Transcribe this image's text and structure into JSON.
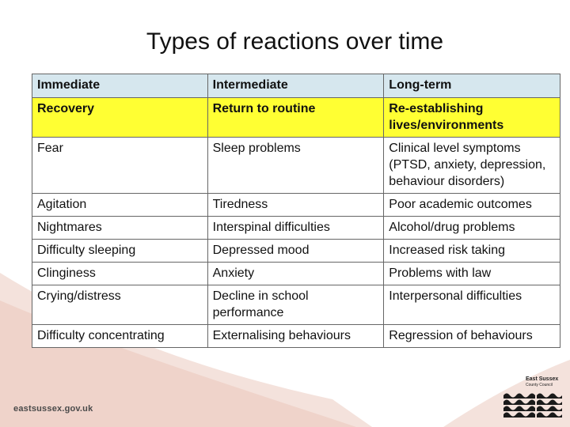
{
  "slide": {
    "title": "Types of reactions over time"
  },
  "table": {
    "rows": [
      [
        "Immediate",
        "Intermediate",
        "Long-term"
      ],
      [
        "Recovery",
        "Return to routine",
        "Re-establishing lives/environments"
      ],
      [
        "Fear",
        "Sleep problems",
        "Clinical level symptoms (PTSD, anxiety, depression, behaviour disorders)"
      ],
      [
        "Agitation",
        "Tiredness",
        "Poor academic outcomes"
      ],
      [
        "Nightmares",
        "Interspinal difficulties",
        "Alcohol/drug problems"
      ],
      [
        "Difficulty sleeping",
        "Depressed mood",
        "Increased risk taking"
      ],
      [
        "Clinginess",
        "Anxiety",
        "Problems with law"
      ],
      [
        "Crying/distress",
        "Decline in school performance",
        "Interpersonal difficulties"
      ],
      [
        "Difficulty concentrating",
        "Externalising behaviours",
        "Regression of behaviours"
      ]
    ]
  },
  "footer": {
    "url": "eastsussex.gov.uk",
    "logo_line1": "East Sussex",
    "logo_line2": "County Council",
    "logo_icon": "wave-logo-icon"
  },
  "colors": {
    "header_bg": "#d6e7ee",
    "highlight_bg": "#ffff33",
    "bg_shape": "#f2dcd5"
  }
}
